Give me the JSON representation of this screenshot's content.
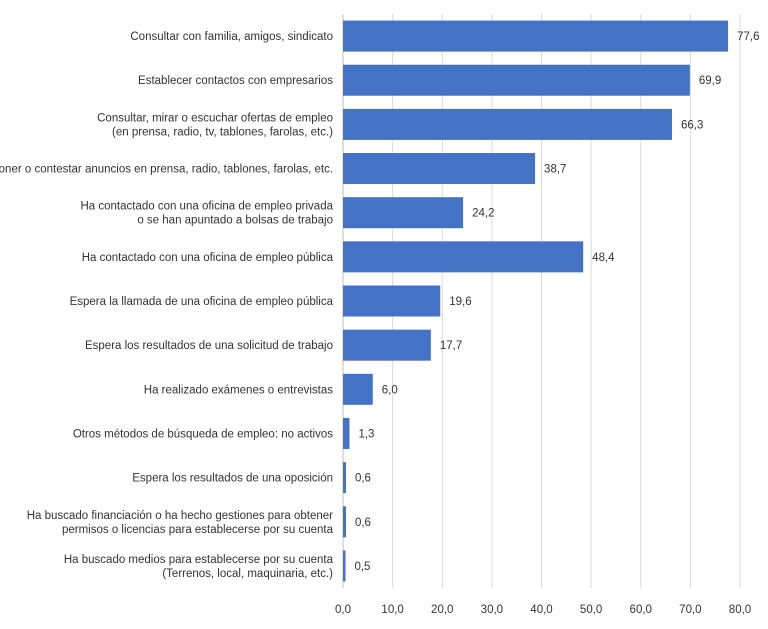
{
  "chart_data": {
    "type": "bar",
    "orientation": "horizontal",
    "categories": [
      [
        "Consultar con familia, amigos, sindicato"
      ],
      [
        "Establecer contactos con empresarios"
      ],
      [
        "Consultar, mirar o escuchar ofertas de empleo",
        "(en prensa, radio, tv, tablones, farolas, etc.)"
      ],
      [
        "Poner o contestar anuncios en prensa, radio, tablones, farolas, etc."
      ],
      [
        "Ha contactado con una oficina de empleo privada",
        "o se han apuntado a bolsas de trabajo"
      ],
      [
        "Ha contactado con una oficina de empleo pública"
      ],
      [
        "Espera la llamada de una oficina de empleo pública"
      ],
      [
        "Espera los resultados de una solicitud de trabajo"
      ],
      [
        "Ha realizado exámenes o entrevistas"
      ],
      [
        "Otros métodos de búsqueda de empleo: no activos"
      ],
      [
        "Espera los resultados de una oposición"
      ],
      [
        "Ha buscado financiación o ha hecho gestiones para obtener",
        "permisos o licencias para establecerse por su cuenta"
      ],
      [
        "Ha buscado medios para establecerse por su cuenta",
        "(Terrenos, local, maquinaria, etc.)"
      ]
    ],
    "values": [
      77.6,
      69.9,
      66.3,
      38.7,
      24.2,
      48.4,
      19.6,
      17.7,
      6.0,
      1.3,
      0.6,
      0.6,
      0.5
    ],
    "value_labels": [
      "77,6",
      "69,9",
      "66,3",
      "38,7",
      "24,2",
      "48,4",
      "19,6",
      "17,7",
      "6,0",
      "1,3",
      "0,6",
      "0,6",
      "0,5"
    ],
    "xlim": [
      0,
      80
    ],
    "ticks": [
      0,
      10,
      20,
      30,
      40,
      50,
      60,
      70,
      80
    ],
    "tick_labels": [
      "0,0",
      "10,0",
      "20,0",
      "30,0",
      "40,0",
      "50,0",
      "60,0",
      "70,0",
      "80,0"
    ],
    "grid": true,
    "bar_color": "#4472c4",
    "grid_color": "#d9d9d9",
    "title": "",
    "xlabel": "",
    "ylabel": ""
  }
}
